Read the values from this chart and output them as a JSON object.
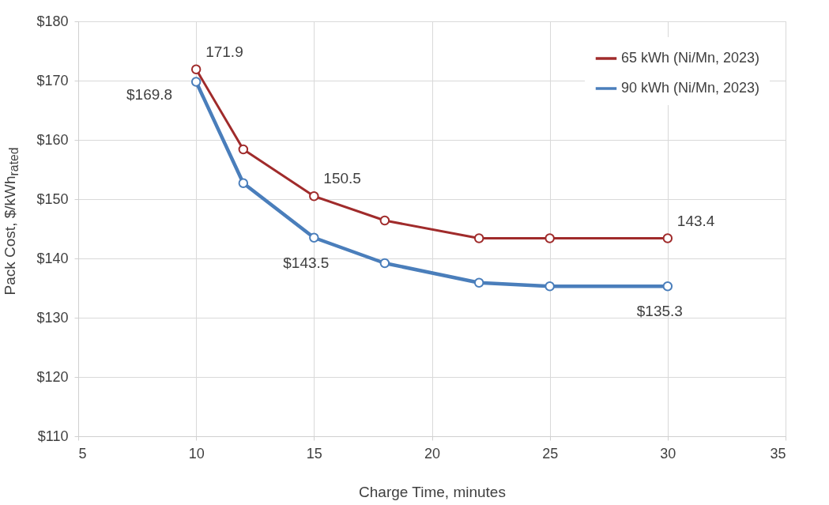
{
  "chart_data": {
    "type": "line",
    "xlabel": "Charge Time, minutes",
    "ylabel": "Pack Cost, $/kWh$_{rated}$",
    "x": [
      10,
      12,
      15,
      18,
      22,
      25,
      30
    ],
    "series": [
      {
        "name": "65 kWh (Ni/Mn, 2023)",
        "color": "#a02b2b",
        "values": [
          171.9,
          158.4,
          150.5,
          146.4,
          143.4,
          143.4,
          143.4
        ],
        "value_labels": [
          "171.9",
          null,
          "150.5",
          null,
          null,
          null,
          "143.4"
        ]
      },
      {
        "name": "90 kWh (Ni/Mn, 2023)",
        "color": "#4a7ebb",
        "values": [
          169.8,
          152.7,
          143.5,
          139.2,
          135.9,
          135.3,
          135.3
        ],
        "value_labels": [
          "$169.8",
          null,
          "$143.5",
          null,
          null,
          null,
          "$135.3"
        ]
      }
    ],
    "xlim": [
      5,
      35
    ],
    "xticks": [
      5,
      10,
      15,
      20,
      25,
      30,
      35
    ],
    "ylim": [
      110,
      180
    ],
    "yticks": [
      {
        "value": 110,
        "label": "$110"
      },
      {
        "value": 120,
        "label": "$120"
      },
      {
        "value": 130,
        "label": "$130"
      },
      {
        "value": 140,
        "label": "$140"
      },
      {
        "value": 150,
        "label": "$150"
      },
      {
        "value": 160,
        "label": "$160"
      },
      {
        "value": 170,
        "label": "$170"
      },
      {
        "value": 180,
        "label": "$180"
      }
    ],
    "grid": true,
    "legend": "top right",
    "marker": "circle"
  }
}
